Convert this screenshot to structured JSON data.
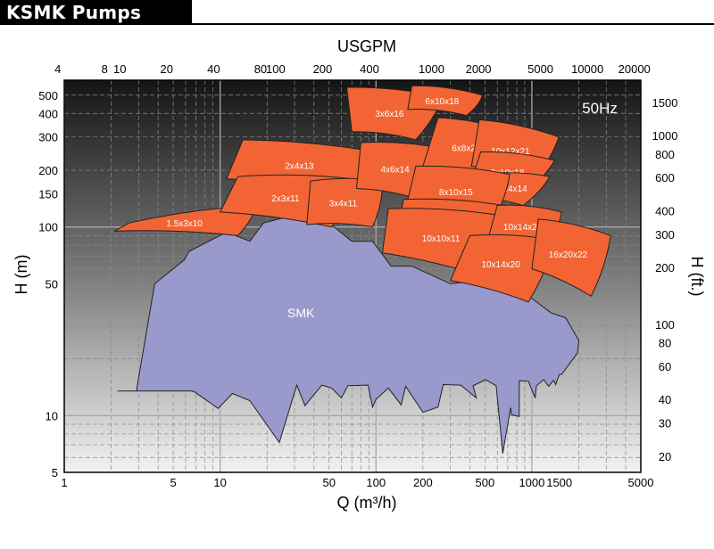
{
  "header": {
    "title": "KSMK Pumps"
  },
  "chart_data": {
    "type": "area",
    "title": "",
    "xlabel": "Q (m³/h)",
    "x2label": "USGPM",
    "ylabel": "H (m)",
    "y2label": "H (ft.)",
    "frequency_label": "50Hz",
    "x_scale": "log",
    "y_scale": "log",
    "xlim": [
      1,
      5000
    ],
    "ylim": [
      5,
      600
    ],
    "x_ticks": [
      {
        "value": 1,
        "label": "1"
      },
      {
        "value": 5,
        "label": "5"
      },
      {
        "value": 10,
        "label": "10"
      },
      {
        "value": 50,
        "label": "50"
      },
      {
        "value": 100,
        "label": "100"
      },
      {
        "value": 200,
        "label": "200"
      },
      {
        "value": 500,
        "label": "500"
      },
      {
        "value": 1000,
        "label": "1000"
      },
      {
        "value": 1500,
        "label": "1500"
      },
      {
        "value": 5000,
        "label": "5000"
      }
    ],
    "x2_ticks": [
      {
        "value": 4,
        "label": "4"
      },
      {
        "value": 8,
        "label": "8"
      },
      {
        "value": 10,
        "label": "10"
      },
      {
        "value": 20,
        "label": "20"
      },
      {
        "value": 40,
        "label": "40"
      },
      {
        "value": 80,
        "label": "80"
      },
      {
        "value": 100,
        "label": "100"
      },
      {
        "value": 200,
        "label": "200"
      },
      {
        "value": 400,
        "label": "400"
      },
      {
        "value": 1000,
        "label": "1000"
      },
      {
        "value": 2000,
        "label": "2000"
      },
      {
        "value": 5000,
        "label": "5000"
      },
      {
        "value": 10000,
        "label": "10000"
      },
      {
        "value": 20000,
        "label": "20000"
      }
    ],
    "y_ticks": [
      {
        "value": 5,
        "label": "5"
      },
      {
        "value": 10,
        "label": "10"
      },
      {
        "value": 50,
        "label": "50"
      },
      {
        "value": 100,
        "label": "100"
      },
      {
        "value": 150,
        "label": "150"
      },
      {
        "value": 200,
        "label": "200"
      },
      {
        "value": 300,
        "label": "300"
      },
      {
        "value": 400,
        "label": "400"
      },
      {
        "value": 500,
        "label": "500"
      }
    ],
    "y2_ticks": [
      {
        "value": 20,
        "label": "20"
      },
      {
        "value": 30,
        "label": "30"
      },
      {
        "value": 40,
        "label": "40"
      },
      {
        "value": 60,
        "label": "60"
      },
      {
        "value": 80,
        "label": "80"
      },
      {
        "value": 100,
        "label": "100"
      },
      {
        "value": 200,
        "label": "200"
      },
      {
        "value": 300,
        "label": "300"
      },
      {
        "value": 400,
        "label": "400"
      },
      {
        "value": 600,
        "label": "600"
      },
      {
        "value": 800,
        "label": "800"
      },
      {
        "value": 1000,
        "label": "1000"
      },
      {
        "value": 1500,
        "label": "1500"
      }
    ],
    "grid": true,
    "colors": {
      "pump": "#f26434",
      "smk": "#9999cc",
      "outline": "#222222"
    },
    "smk_region": {
      "label": "SMK",
      "outline": [
        [
          2.2,
          13.5
        ],
        [
          2.9,
          13.5
        ],
        [
          3.8,
          50
        ],
        [
          5.9,
          67
        ],
        [
          6.3,
          74
        ],
        [
          11,
          94
        ],
        [
          15.5,
          84
        ],
        [
          19,
          105
        ],
        [
          29,
          115
        ],
        [
          48,
          108
        ],
        [
          70,
          84
        ],
        [
          95,
          84
        ],
        [
          125,
          62
        ],
        [
          170,
          62
        ],
        [
          300,
          50
        ],
        [
          560,
          53
        ],
        [
          740,
          53
        ],
        [
          890,
          45
        ],
        [
          1330,
          35
        ],
        [
          1650,
          33
        ],
        [
          2000,
          25
        ],
        [
          1960,
          21.5
        ],
        [
          1550,
          16.5
        ],
        [
          1500,
          16.5
        ],
        [
          1420,
          14.6
        ],
        [
          1380,
          15.4
        ],
        [
          1280,
          14.3
        ],
        [
          1190,
          15.5
        ],
        [
          1070,
          14.4
        ],
        [
          1050,
          12.4
        ],
        [
          950,
          15.2
        ],
        [
          830,
          15.3
        ],
        [
          830,
          9.9
        ],
        [
          740,
          10.1
        ],
        [
          730,
          11
        ],
        [
          650,
          6.3
        ],
        [
          590,
          14.4
        ],
        [
          505,
          15.5
        ],
        [
          420,
          14.4
        ],
        [
          440,
          12.4
        ],
        [
          350,
          14.5
        ],
        [
          270,
          14.6
        ],
        [
          250,
          11.1
        ],
        [
          200,
          10.4
        ],
        [
          155,
          14.3
        ],
        [
          145,
          11.4
        ],
        [
          120,
          14
        ],
        [
          100,
          12.2
        ],
        [
          95,
          11.1
        ],
        [
          89,
          14.5
        ],
        [
          66,
          14.4
        ],
        [
          60,
          12.4
        ],
        [
          52,
          14
        ],
        [
          45,
          14.5
        ],
        [
          35,
          11.3
        ],
        [
          31,
          14.5
        ],
        [
          24,
          7.2
        ],
        [
          15.5,
          12
        ],
        [
          12,
          13.1
        ],
        [
          9.7,
          10.9
        ],
        [
          7.7,
          12.5
        ],
        [
          6.8,
          13.4
        ],
        [
          6.5,
          13.5
        ],
        [
          2.9,
          13.5
        ],
        [
          2.2,
          13.5
        ]
      ]
    },
    "pump_curves": [
      {
        "label": "1.5x3x10",
        "outline": [
          [
            2.6,
            105
          ],
          [
            17,
            130
          ],
          [
            13,
            90
          ],
          [
            2.1,
            95
          ]
        ]
      },
      {
        "label": "2x4x13",
        "outline": [
          [
            14,
            290
          ],
          [
            100,
            250
          ],
          [
            70,
            150
          ],
          [
            11,
            180
          ]
        ]
      },
      {
        "label": "2x3x11",
        "outline": [
          [
            13,
            185
          ],
          [
            70,
            180
          ],
          [
            52,
            100
          ],
          [
            10,
            120
          ]
        ]
      },
      {
        "label": "3x4x11",
        "outline": [
          [
            38,
            175
          ],
          [
            110,
            175
          ],
          [
            95,
            100
          ],
          [
            36,
            103
          ]
        ]
      },
      {
        "label": "3x6x16",
        "outline": [
          [
            65,
            550
          ],
          [
            270,
            490
          ],
          [
            180,
            290
          ],
          [
            70,
            320
          ]
        ]
      },
      {
        "label": "6x10x18",
        "outline": [
          [
            170,
            560
          ],
          [
            480,
            500
          ],
          [
            380,
            390
          ],
          [
            160,
            420
          ]
        ]
      },
      {
        "label": "4x6x14",
        "outline": [
          [
            80,
            280
          ],
          [
            270,
            260
          ],
          [
            190,
            140
          ],
          [
            75,
            160
          ]
        ]
      },
      {
        "label": "6x8x21",
        "outline": [
          [
            250,
            380
          ],
          [
            750,
            320
          ],
          [
            550,
            180
          ],
          [
            200,
            210
          ]
        ]
      },
      {
        "label": "10x12x21",
        "outline": [
          [
            460,
            370
          ],
          [
            1490,
            300
          ],
          [
            1000,
            170
          ],
          [
            410,
            210
          ]
        ]
      },
      {
        "label": "8x10x18",
        "outline": [
          [
            470,
            250
          ],
          [
            1400,
            225
          ],
          [
            890,
            150
          ],
          [
            400,
            165
          ]
        ]
      },
      {
        "label": "10x14x14",
        "outline": [
          [
            480,
            190
          ],
          [
            1300,
            185
          ],
          [
            880,
            130
          ],
          [
            440,
            140
          ]
        ]
      },
      {
        "label": "8x10x15",
        "outline": [
          [
            180,
            210
          ],
          [
            720,
            190
          ],
          [
            560,
            108
          ],
          [
            155,
            125
          ]
        ]
      },
      {
        "label": "10x10x13",
        "outline": [
          [
            150,
            140
          ],
          [
            650,
            130
          ],
          [
            540,
            98
          ],
          [
            140,
            103
          ]
        ]
      },
      {
        "label": "10x10x11",
        "outline": [
          [
            120,
            125
          ],
          [
            630,
            115
          ],
          [
            560,
            53
          ],
          [
            110,
            73
          ]
        ]
      },
      {
        "label": "10x14x24",
        "outline": [
          [
            600,
            130
          ],
          [
            1550,
            120
          ],
          [
            1200,
            75
          ],
          [
            520,
            85
          ]
        ]
      },
      {
        "label": "10x14x20",
        "outline": [
          [
            400,
            90
          ],
          [
            1400,
            85
          ],
          [
            950,
            40
          ],
          [
            300,
            52
          ]
        ]
      },
      {
        "label": "16x20x22",
        "outline": [
          [
            1100,
            110
          ],
          [
            3200,
            90
          ],
          [
            2400,
            43
          ],
          [
            1000,
            60
          ]
        ]
      }
    ]
  }
}
